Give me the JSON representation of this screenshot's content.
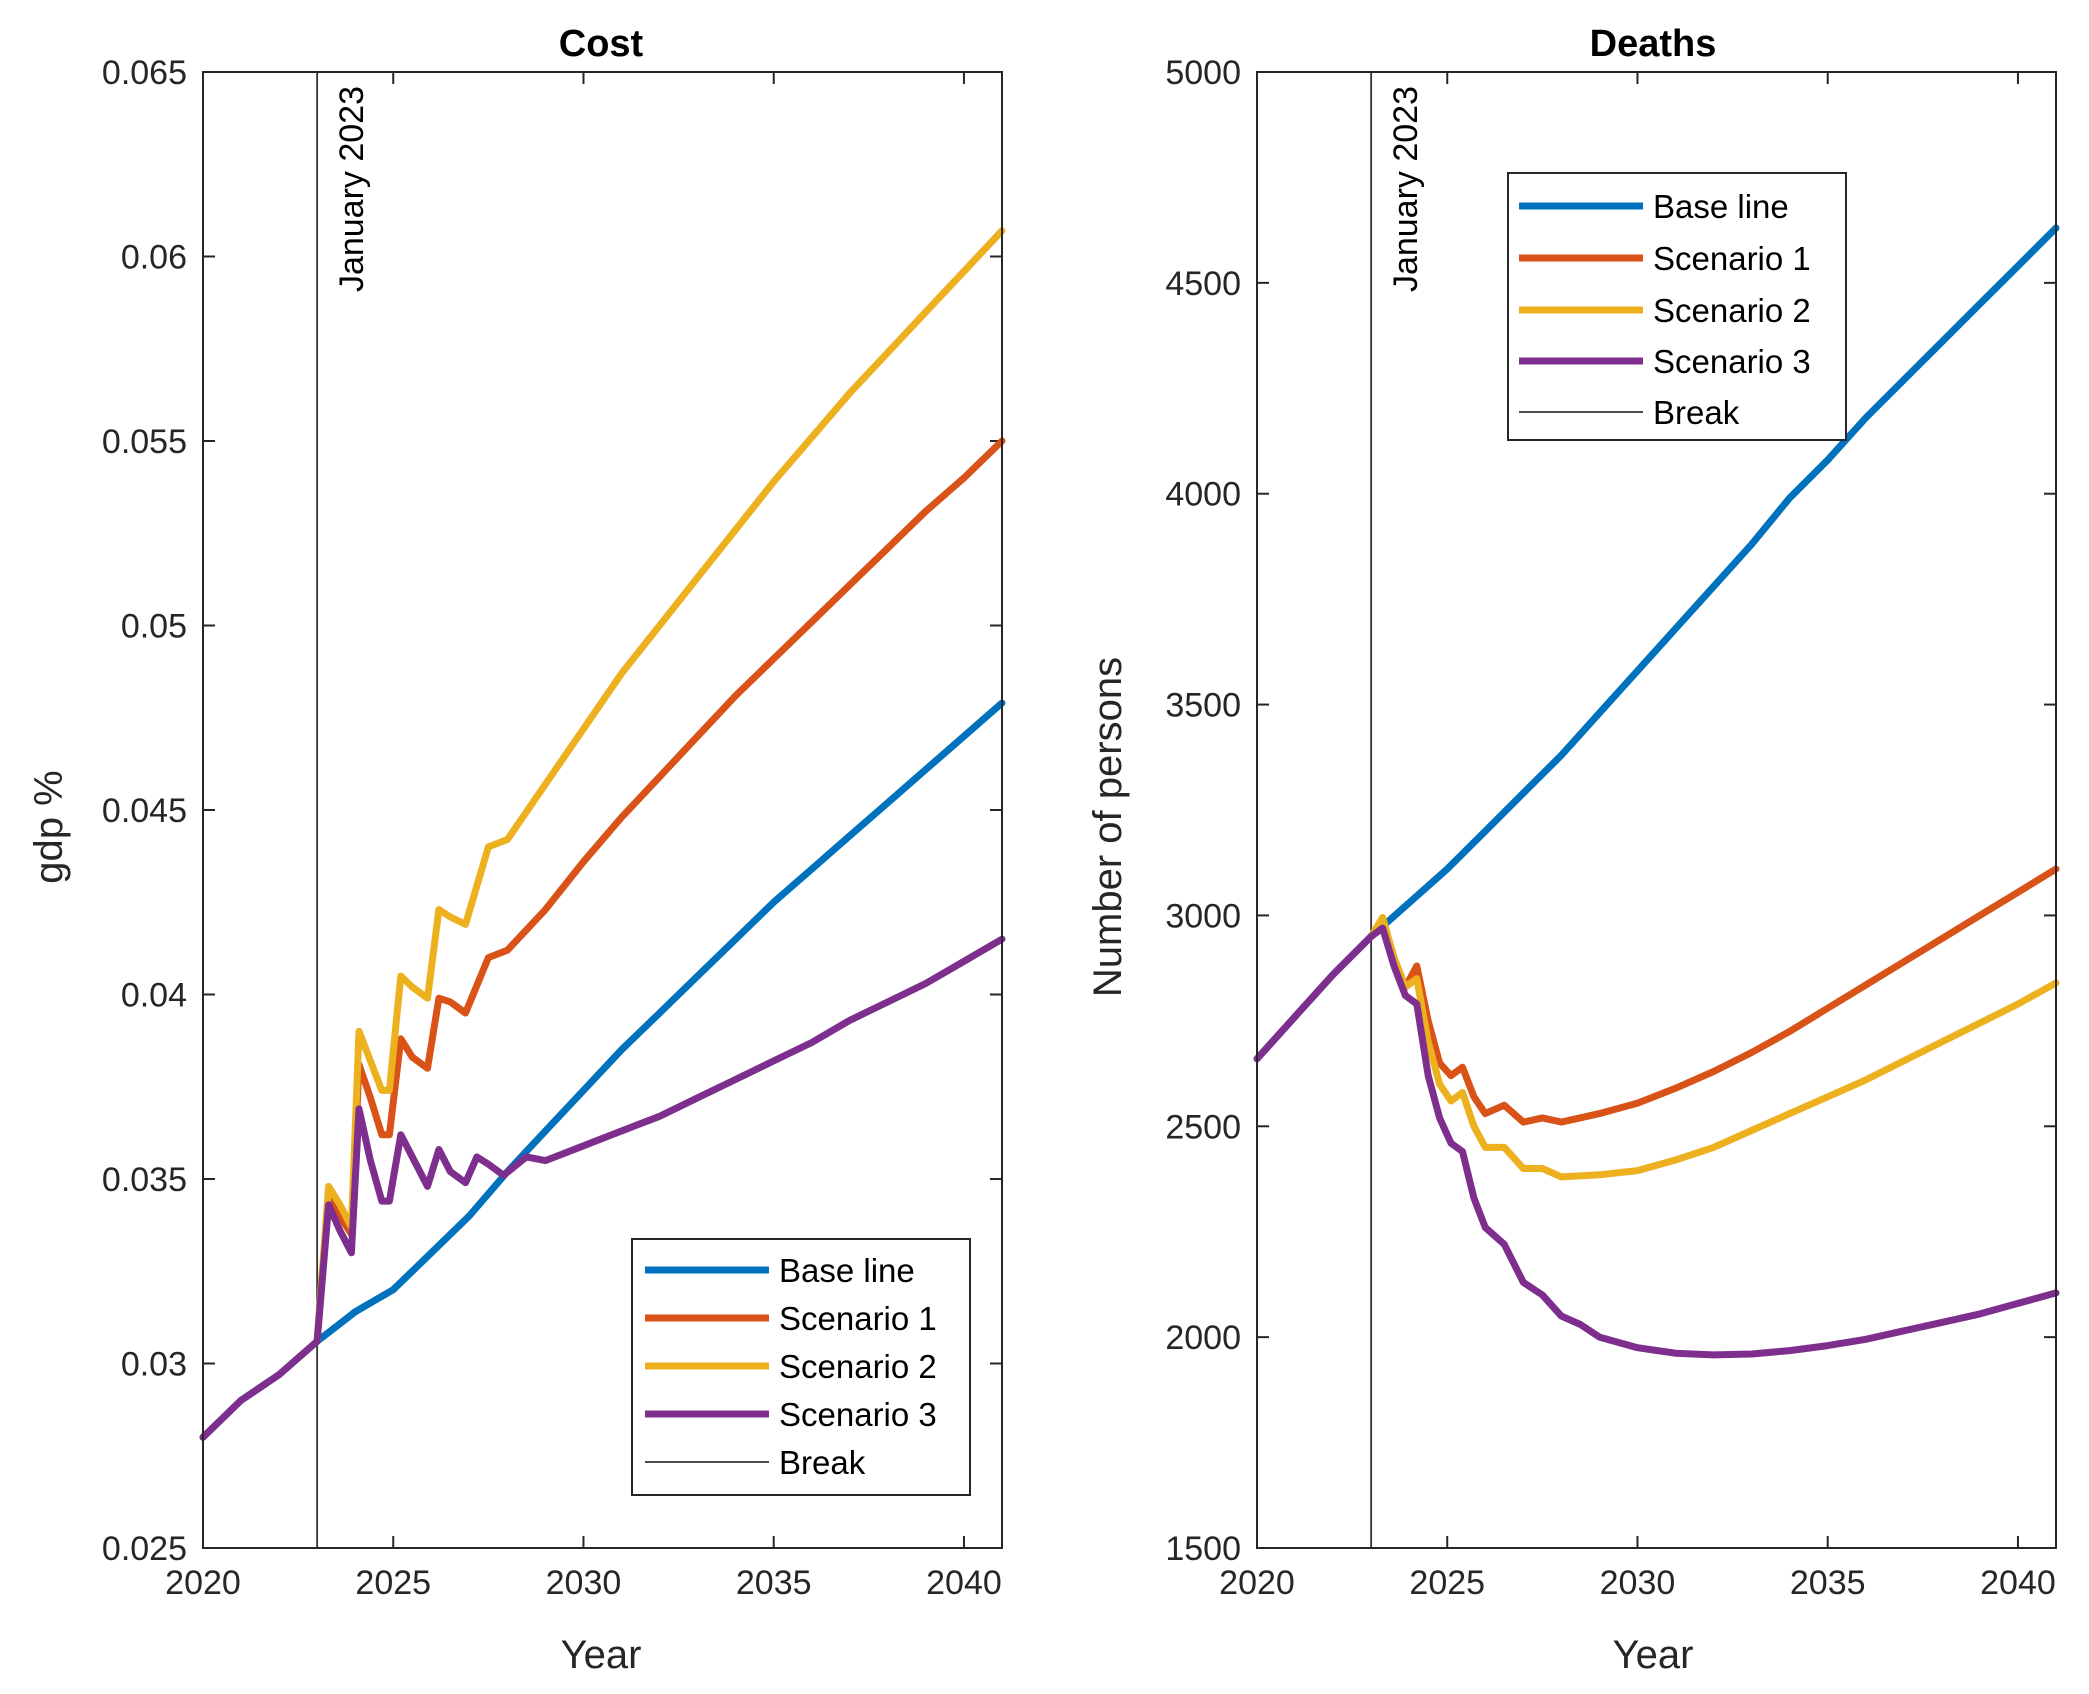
{
  "chart_data": [
    {
      "type": "line",
      "title": "Cost",
      "xlabel": "Year",
      "ylabel": "gdp %",
      "xlim": [
        2020,
        2041
      ],
      "ylim": [
        0.025,
        0.065
      ],
      "xticks": [
        2020,
        2025,
        2030,
        2035,
        2040
      ],
      "xtick_labels": [
        "2020",
        "2025",
        "2030",
        "2035",
        "2040"
      ],
      "yticks": [
        0.025,
        0.03,
        0.035,
        0.04,
        0.045,
        0.05,
        0.055,
        0.06,
        0.065
      ],
      "ytick_labels": [
        "0.025",
        "0.03",
        "0.035",
        "0.04",
        "0.045",
        "0.05",
        "0.055",
        "0.06",
        "0.065"
      ],
      "legend_position": "bottom-right",
      "break": {
        "x": 2023,
        "label": "January 2023",
        "legend": "Break"
      },
      "series": [
        {
          "name": "Base line",
          "color": "#0072BD",
          "x": [
            2020,
            2021,
            2022,
            2023,
            2024,
            2025,
            2026,
            2027,
            2028,
            2029,
            2030,
            2031,
            2032,
            2033,
            2034,
            2035,
            2036,
            2037,
            2038,
            2039,
            2040,
            2041
          ],
          "y": [
            0.028,
            0.029,
            0.0297,
            0.0306,
            0.0314,
            0.032,
            0.033,
            0.034,
            0.0352,
            0.0363,
            0.0374,
            0.0385,
            0.0395,
            0.0405,
            0.0415,
            0.0425,
            0.0434,
            0.0443,
            0.0452,
            0.0461,
            0.047,
            0.0479
          ]
        },
        {
          "name": "Scenario 1",
          "color": "#D95319",
          "x": [
            2023,
            2023.3,
            2023.6,
            2023.9,
            2024.1,
            2024.4,
            2024.7,
            2024.9,
            2025.2,
            2025.5,
            2025.9,
            2026.2,
            2026.5,
            2026.9,
            2027.5,
            2028,
            2029,
            2030,
            2031,
            2032,
            2033,
            2034,
            2035,
            2036,
            2037,
            2038,
            2039,
            2040,
            2041
          ],
          "y": [
            0.0306,
            0.0345,
            0.034,
            0.0335,
            0.0381,
            0.0372,
            0.0362,
            0.0362,
            0.0388,
            0.0383,
            0.038,
            0.0399,
            0.0398,
            0.0395,
            0.041,
            0.0412,
            0.0423,
            0.0436,
            0.0448,
            0.0459,
            0.047,
            0.0481,
            0.0491,
            0.0501,
            0.0511,
            0.0521,
            0.0531,
            0.054,
            0.055
          ]
        },
        {
          "name": "Scenario 2",
          "color": "#EDB120",
          "x": [
            2023,
            2023.3,
            2023.6,
            2023.9,
            2024.1,
            2024.4,
            2024.7,
            2024.9,
            2025.2,
            2025.5,
            2025.9,
            2026.2,
            2026.5,
            2026.9,
            2027.5,
            2028,
            2029,
            2030,
            2031,
            2032,
            2033,
            2034,
            2035,
            2036,
            2037,
            2038,
            2039,
            2040,
            2041
          ],
          "y": [
            0.0306,
            0.0348,
            0.0343,
            0.0337,
            0.039,
            0.0382,
            0.0374,
            0.0374,
            0.0405,
            0.0402,
            0.0399,
            0.0423,
            0.0421,
            0.0419,
            0.044,
            0.0442,
            0.0457,
            0.0472,
            0.0487,
            0.05,
            0.0513,
            0.0526,
            0.0539,
            0.0551,
            0.0563,
            0.0574,
            0.0585,
            0.0596,
            0.0607
          ]
        },
        {
          "name": "Scenario 3",
          "color": "#7E2F8E",
          "x": [
            2020,
            2021,
            2022,
            2023,
            2023.3,
            2023.6,
            2023.9,
            2024.1,
            2024.4,
            2024.7,
            2024.9,
            2025.2,
            2025.5,
            2025.9,
            2026.2,
            2026.5,
            2026.9,
            2027.2,
            2027.5,
            2027.9,
            2028.5,
            2029,
            2030,
            2031,
            2032,
            2033,
            2034,
            2035,
            2036,
            2037,
            2038,
            2039,
            2040,
            2041
          ],
          "y": [
            0.028,
            0.029,
            0.0297,
            0.0306,
            0.0343,
            0.0336,
            0.033,
            0.0369,
            0.0355,
            0.0344,
            0.0344,
            0.0362,
            0.0356,
            0.0348,
            0.0358,
            0.0352,
            0.0349,
            0.0356,
            0.0354,
            0.0351,
            0.0356,
            0.0355,
            0.0359,
            0.0363,
            0.0367,
            0.0372,
            0.0377,
            0.0382,
            0.0387,
            0.0393,
            0.0398,
            0.0403,
            0.0409,
            0.0415
          ]
        }
      ]
    },
    {
      "type": "line",
      "title": "Deaths",
      "xlabel": "Year",
      "ylabel": "Number of persons",
      "xlim": [
        2020,
        2041
      ],
      "ylim": [
        1500,
        5000
      ],
      "xticks": [
        2020,
        2025,
        2030,
        2035,
        2040
      ],
      "xtick_labels": [
        "2020",
        "2025",
        "2030",
        "2035",
        "2040"
      ],
      "yticks": [
        1500,
        2000,
        2500,
        3000,
        3500,
        4000,
        4500,
        5000
      ],
      "ytick_labels": [
        "1500",
        "2000",
        "2500",
        "3000",
        "3500",
        "4000",
        "4500",
        "5000"
      ],
      "legend_position": "top-center",
      "break": {
        "x": 2023,
        "label": "January 2023",
        "legend": "Break"
      },
      "series": [
        {
          "name": "Base line",
          "color": "#0072BD",
          "x": [
            2020,
            2021,
            2022,
            2023,
            2024,
            2025,
            2026,
            2027,
            2028,
            2029,
            2030,
            2031,
            2032,
            2033,
            2034,
            2035,
            2036,
            2037,
            2038,
            2039,
            2040,
            2041
          ],
          "y": [
            2660,
            2760,
            2860,
            2950,
            3030,
            3110,
            3200,
            3290,
            3380,
            3480,
            3580,
            3680,
            3780,
            3880,
            3990,
            4080,
            4180,
            4270,
            4360,
            4450,
            4540,
            4630
          ]
        },
        {
          "name": "Scenario 1",
          "color": "#D95319",
          "x": [
            2023,
            2023.3,
            2023.6,
            2023.9,
            2024.2,
            2024.5,
            2024.8,
            2025.1,
            2025.4,
            2025.7,
            2026,
            2026.5,
            2027,
            2027.5,
            2028,
            2029,
            2030,
            2031,
            2032,
            2033,
            2034,
            2035,
            2036,
            2037,
            2038,
            2039,
            2040,
            2041
          ],
          "y": [
            2950,
            2990,
            2900,
            2830,
            2880,
            2750,
            2650,
            2620,
            2640,
            2570,
            2530,
            2550,
            2510,
            2520,
            2510,
            2530,
            2555,
            2590,
            2630,
            2675,
            2725,
            2780,
            2835,
            2890,
            2945,
            3000,
            3055,
            3110
          ]
        },
        {
          "name": "Scenario 2",
          "color": "#EDB120",
          "x": [
            2023,
            2023.3,
            2023.6,
            2023.9,
            2024.2,
            2024.5,
            2024.8,
            2025.1,
            2025.4,
            2025.7,
            2026,
            2026.5,
            2027,
            2027.5,
            2028,
            2029,
            2030,
            2031,
            2032,
            2033,
            2034,
            2035,
            2036,
            2037,
            2038,
            2039,
            2040,
            2041
          ],
          "y": [
            2950,
            2995,
            2900,
            2830,
            2850,
            2700,
            2600,
            2560,
            2580,
            2500,
            2450,
            2450,
            2400,
            2400,
            2380,
            2385,
            2395,
            2420,
            2450,
            2490,
            2530,
            2570,
            2610,
            2655,
            2700,
            2745,
            2790,
            2840
          ]
        },
        {
          "name": "Scenario 3",
          "color": "#7E2F8E",
          "x": [
            2020,
            2021,
            2022,
            2023,
            2023.3,
            2023.6,
            2023.9,
            2024.2,
            2024.5,
            2024.8,
            2025.1,
            2025.4,
            2025.7,
            2026,
            2026.5,
            2027,
            2027.5,
            2028,
            2028.5,
            2029,
            2030,
            2031,
            2032,
            2033,
            2034,
            2035,
            2036,
            2037,
            2038,
            2039,
            2040,
            2041
          ],
          "y": [
            2660,
            2760,
            2860,
            2950,
            2970,
            2880,
            2810,
            2790,
            2620,
            2520,
            2460,
            2440,
            2330,
            2260,
            2220,
            2130,
            2100,
            2050,
            2030,
            2000,
            1975,
            1962,
            1958,
            1960,
            1968,
            1980,
            1995,
            2015,
            2035,
            2055,
            2080,
            2105
          ]
        }
      ]
    }
  ]
}
